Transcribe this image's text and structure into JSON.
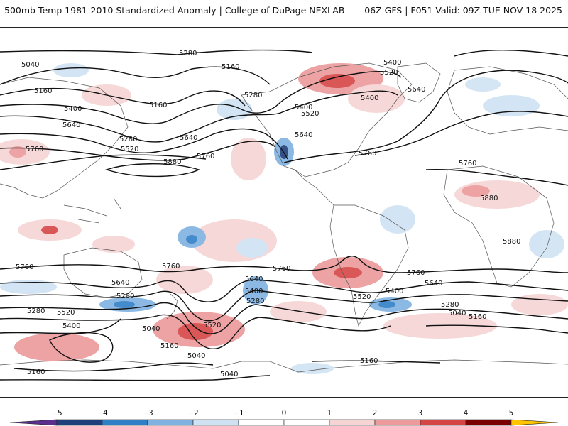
{
  "header": {
    "left_title": "500mb Temp 1981-2010 Standardized Anomaly | College of DuPage NEXLAB",
    "right_title": "06Z GFS | F051 Valid: 09Z TUE NOV 18 2025"
  },
  "map": {
    "height_labels": [
      "5280",
      "5160",
      "5040",
      "5160",
      "5400",
      "5640",
      "5760",
      "5160",
      "5280",
      "5520",
      "5640",
      "5760",
      "5880",
      "5280",
      "5400",
      "5520",
      "5640",
      "5400",
      "5520",
      "5400",
      "5640",
      "5760",
      "5760",
      "5880",
      "5880",
      "5760",
      "5760",
      "5640",
      "5280",
      "5760",
      "5640",
      "5400",
      "5280",
      "5520",
      "5760",
      "5640",
      "5400",
      "5520",
      "5280",
      "5040",
      "5160",
      "5280",
      "5520",
      "5400",
      "5040",
      "5160",
      "5040",
      "5040",
      "5160",
      "5160"
    ],
    "colors": {
      "neg5": "#5b2d8c",
      "neg4": "#1f3f7a",
      "neg3": "#2f7fc6",
      "neg2": "#7fb2e0",
      "neg1": "#cfe2f3",
      "zero": "#ffffff",
      "pos1": "#f6d4d4",
      "pos2": "#ec9a9a",
      "pos3": "#d64545",
      "pos4": "#b21818",
      "pos5": "#7a0000",
      "pos6": "#ffc400"
    }
  },
  "colorbar": {
    "ticks": [
      "−5",
      "−4",
      "−3",
      "−2",
      "−1",
      "0",
      "1",
      "2",
      "3",
      "4",
      "5"
    ]
  }
}
